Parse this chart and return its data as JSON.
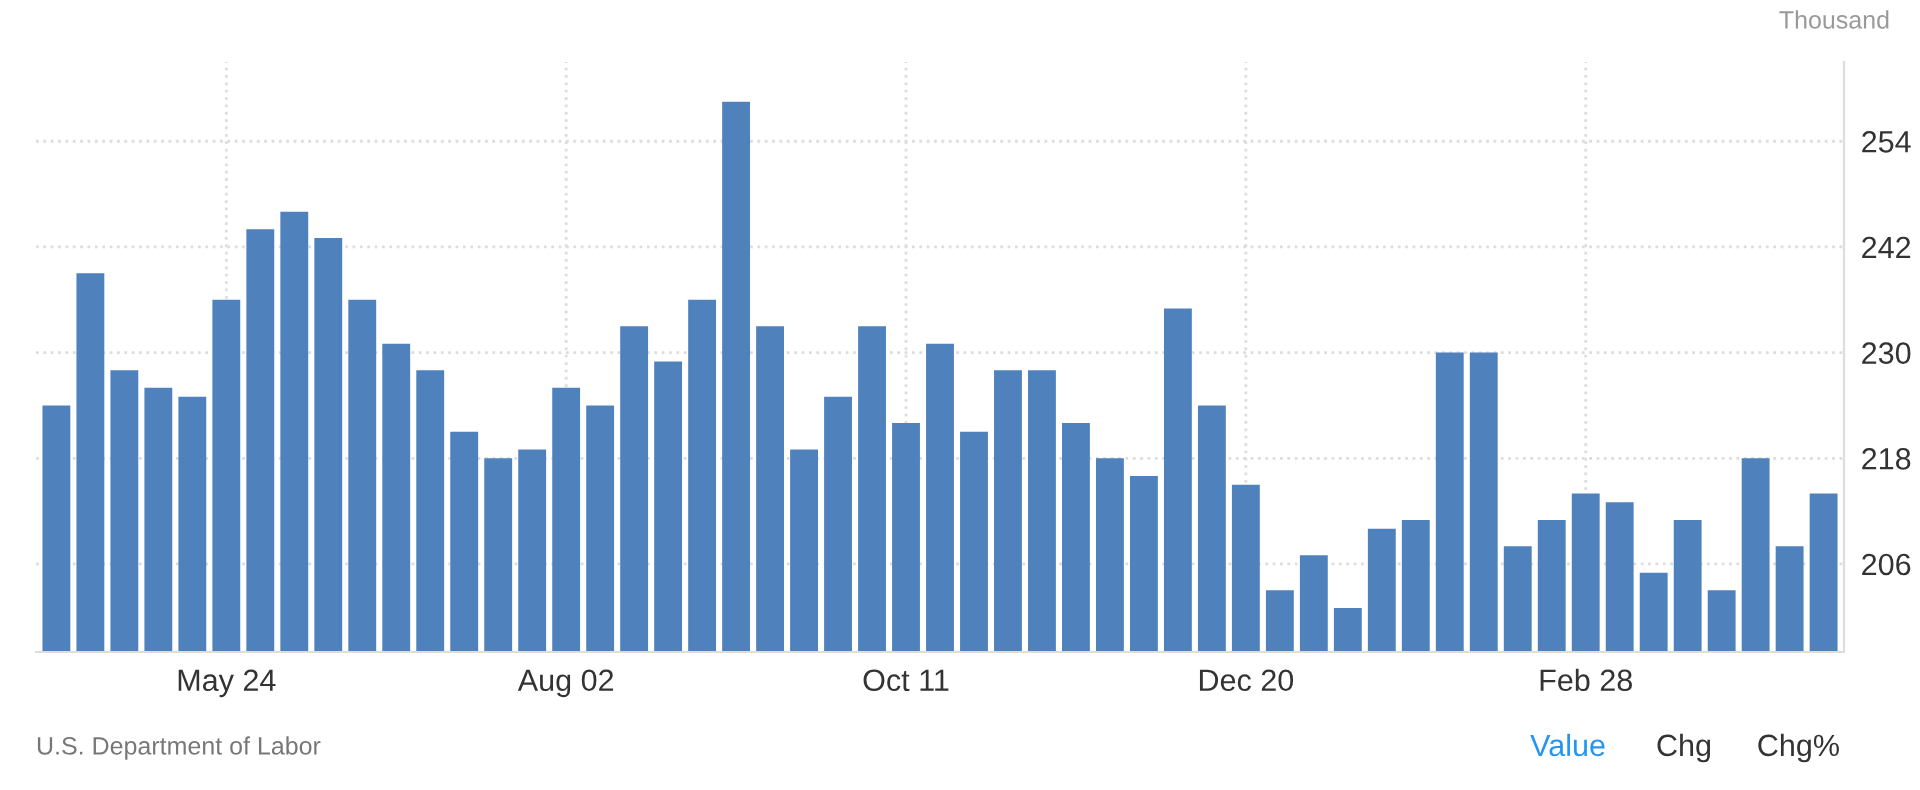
{
  "chart_data": {
    "type": "bar",
    "ylabel": "Thousand",
    "categories": [
      null,
      null,
      null,
      null,
      null,
      "May 24",
      null,
      null,
      null,
      null,
      null,
      null,
      null,
      null,
      null,
      "Aug 02",
      null,
      null,
      null,
      null,
      null,
      null,
      null,
      null,
      null,
      "Oct 11",
      null,
      null,
      null,
      null,
      null,
      null,
      null,
      null,
      null,
      "Dec 20",
      null,
      null,
      null,
      null,
      null,
      null,
      null,
      null,
      null,
      "Feb 28",
      null,
      null,
      null,
      null,
      null,
      null,
      null
    ],
    "values": [
      224,
      239,
      228,
      226,
      225,
      236,
      244,
      246,
      243,
      236,
      231,
      228,
      221,
      218,
      219,
      226,
      224,
      233,
      229,
      236,
      258.5,
      233,
      219,
      225,
      233,
      222,
      231,
      221,
      228,
      228,
      222,
      218,
      216,
      235,
      224,
      215,
      203,
      207,
      201,
      210,
      211,
      230,
      230,
      208,
      211,
      214,
      213,
      205,
      211,
      203,
      218,
      208,
      214
    ],
    "color": "#4f81bd",
    "ylim": [
      196,
      263
    ],
    "yticks": [
      206,
      218,
      230,
      242,
      254
    ],
    "grid": true,
    "annotations": [
      "U.S. Department of Labor",
      "Value",
      "Chg",
      "Chg%"
    ]
  }
}
